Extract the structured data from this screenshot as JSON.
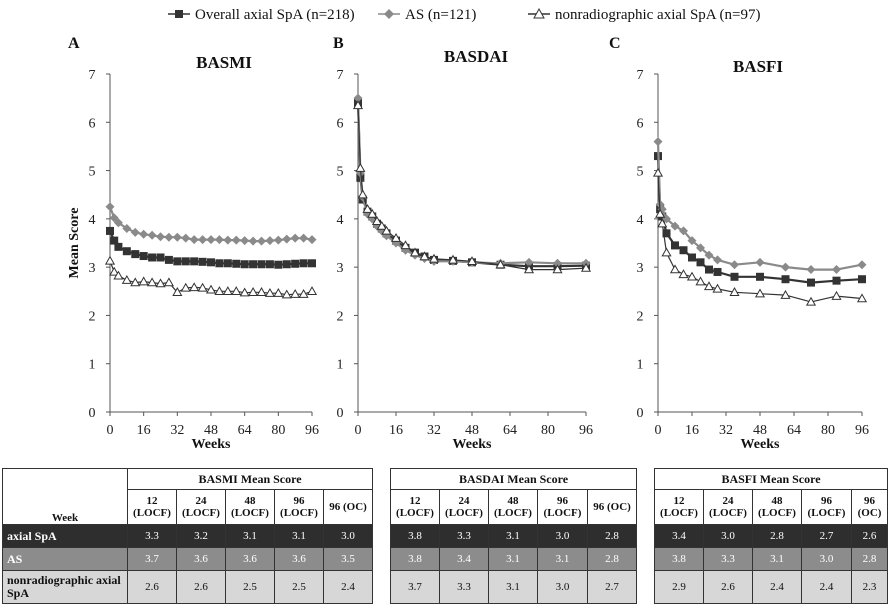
{
  "legend": [
    {
      "label": "Overall axial SpA (n=218)",
      "marker": "square",
      "color": "#333333"
    },
    {
      "label": "AS (n=121)",
      "marker": "diamond",
      "color": "#8a8a8a"
    },
    {
      "label": "nonradiographic axial SpA (n=97)",
      "marker": "triangle",
      "color": "#333333"
    }
  ],
  "chart_data": [
    {
      "type": "line",
      "panel_letter": "A",
      "title": "BASMI",
      "xlabel": "Weeks",
      "ylabel": "Mean Score",
      "ylim": [
        0,
        7
      ],
      "yticks": [
        "0",
        "1",
        "2",
        "3",
        "4",
        "5",
        "6",
        "7"
      ],
      "xlim": [
        0,
        96
      ],
      "xticks": [
        "0",
        "16",
        "32",
        "48",
        "64",
        "80",
        "96"
      ],
      "series": [
        {
          "name": "Overall axial SpA (n=218)",
          "x": [
            0,
            2,
            4,
            8,
            12,
            16,
            20,
            24,
            28,
            32,
            36,
            40,
            44,
            48,
            52,
            56,
            60,
            64,
            68,
            72,
            76,
            80,
            84,
            88,
            92,
            96
          ],
          "values": [
            3.75,
            3.55,
            3.42,
            3.33,
            3.27,
            3.23,
            3.2,
            3.2,
            3.15,
            3.12,
            3.12,
            3.12,
            3.11,
            3.1,
            3.08,
            3.08,
            3.07,
            3.06,
            3.06,
            3.06,
            3.06,
            3.05,
            3.06,
            3.07,
            3.08,
            3.08
          ]
        },
        {
          "name": "AS (n=121)",
          "x": [
            0,
            2,
            4,
            8,
            12,
            16,
            20,
            24,
            28,
            32,
            36,
            40,
            44,
            48,
            52,
            56,
            60,
            64,
            68,
            72,
            76,
            80,
            84,
            88,
            92,
            96
          ],
          "values": [
            4.25,
            4.02,
            3.92,
            3.8,
            3.72,
            3.68,
            3.66,
            3.63,
            3.62,
            3.62,
            3.6,
            3.57,
            3.57,
            3.57,
            3.57,
            3.56,
            3.56,
            3.55,
            3.54,
            3.54,
            3.55,
            3.56,
            3.58,
            3.6,
            3.6,
            3.57
          ]
        },
        {
          "name": "nonradiographic axial SpA (n=97)",
          "x": [
            0,
            2,
            4,
            8,
            12,
            16,
            20,
            24,
            28,
            32,
            36,
            40,
            44,
            48,
            52,
            56,
            60,
            64,
            68,
            72,
            76,
            80,
            84,
            88,
            92,
            96
          ],
          "values": [
            3.13,
            2.9,
            2.82,
            2.73,
            2.68,
            2.7,
            2.68,
            2.66,
            2.68,
            2.48,
            2.57,
            2.58,
            2.57,
            2.53,
            2.5,
            2.5,
            2.5,
            2.47,
            2.48,
            2.48,
            2.46,
            2.46,
            2.43,
            2.44,
            2.44,
            2.5
          ]
        }
      ]
    },
    {
      "type": "line",
      "panel_letter": "B",
      "title": "BASDAI",
      "xlabel": "Weeks",
      "ylabel": "",
      "ylim": [
        0,
        7
      ],
      "yticks": [
        "0",
        "1",
        "2",
        "3",
        "4",
        "5",
        "6",
        "7"
      ],
      "xlim": [
        0,
        96
      ],
      "xticks": [
        "0",
        "16",
        "32",
        "48",
        "64",
        "80",
        "96"
      ],
      "series": [
        {
          "name": "Overall axial SpA (n=218)",
          "x": [
            0,
            1,
            2,
            4,
            6,
            8,
            10,
            12,
            16,
            20,
            24,
            28,
            32,
            40,
            48,
            60,
            72,
            84,
            96
          ],
          "values": [
            6.4,
            4.85,
            4.4,
            4.15,
            4.05,
            3.9,
            3.8,
            3.7,
            3.55,
            3.4,
            3.3,
            3.22,
            3.15,
            3.13,
            3.1,
            3.05,
            3.02,
            3.02,
            3.03
          ]
        },
        {
          "name": "AS (n=121)",
          "x": [
            0,
            1,
            2,
            4,
            6,
            8,
            10,
            12,
            16,
            20,
            24,
            28,
            32,
            40,
            48,
            60,
            72,
            84,
            96
          ],
          "values": [
            6.5,
            4.95,
            4.45,
            4.1,
            4.0,
            3.85,
            3.75,
            3.65,
            3.5,
            3.35,
            3.25,
            3.18,
            3.12,
            3.12,
            3.1,
            3.08,
            3.1,
            3.08,
            3.08
          ]
        },
        {
          "name": "nonradiographic axial SpA (n=97)",
          "x": [
            0,
            1,
            2,
            4,
            6,
            8,
            10,
            12,
            16,
            20,
            24,
            28,
            32,
            40,
            48,
            60,
            72,
            84,
            96
          ],
          "values": [
            6.35,
            5.05,
            4.5,
            4.2,
            4.1,
            3.95,
            3.85,
            3.75,
            3.6,
            3.45,
            3.3,
            3.22,
            3.17,
            3.15,
            3.12,
            3.05,
            2.95,
            2.95,
            2.98
          ]
        }
      ]
    },
    {
      "type": "line",
      "panel_letter": "C",
      "title": "BASFI",
      "xlabel": "Weeks",
      "ylabel": "",
      "ylim": [
        0,
        7
      ],
      "yticks": [
        "0",
        "1",
        "2",
        "3",
        "4",
        "5",
        "6",
        "7"
      ],
      "xlim": [
        0,
        96
      ],
      "xticks": [
        "0",
        "16",
        "32",
        "48",
        "64",
        "80",
        "96"
      ],
      "series": [
        {
          "name": "Overall axial SpA (n=218)",
          "x": [
            0,
            1,
            2,
            4,
            8,
            12,
            16,
            20,
            24,
            28,
            36,
            48,
            60,
            72,
            84,
            96
          ],
          "values": [
            5.3,
            4.2,
            4.05,
            3.7,
            3.45,
            3.35,
            3.2,
            3.1,
            2.95,
            2.9,
            2.8,
            2.8,
            2.75,
            2.68,
            2.72,
            2.75
          ]
        },
        {
          "name": "AS (n=121)",
          "x": [
            0,
            1,
            2,
            4,
            8,
            12,
            16,
            20,
            24,
            28,
            36,
            48,
            60,
            72,
            84,
            96
          ],
          "values": [
            5.6,
            4.3,
            4.2,
            4.0,
            3.85,
            3.75,
            3.55,
            3.4,
            3.25,
            3.15,
            3.05,
            3.1,
            3.0,
            2.95,
            2.95,
            3.05
          ]
        },
        {
          "name": "nonradiographic axial SpA (n=97)",
          "x": [
            0,
            1,
            2,
            4,
            8,
            12,
            16,
            20,
            24,
            28,
            36,
            48,
            60,
            72,
            84,
            96
          ],
          "values": [
            4.95,
            4.1,
            3.9,
            3.3,
            2.95,
            2.85,
            2.8,
            2.7,
            2.6,
            2.55,
            2.48,
            2.45,
            2.42,
            2.28,
            2.4,
            2.35
          ]
        }
      ]
    }
  ],
  "tables": {
    "week_label": "Week",
    "col_headers": [
      "12 (LOCF)",
      "24 (LOCF)",
      "48 (LOCF)",
      "96 (LOCF)",
      "96 (OC)"
    ],
    "row_labels": [
      "axial SpA",
      "AS",
      "nonradiographic axial SpA"
    ],
    "panels": [
      {
        "title": "BASMI Mean Score",
        "rows": [
          [
            "3.3",
            "3.2",
            "3.1",
            "3.1",
            "3.0"
          ],
          [
            "3.7",
            "3.6",
            "3.6",
            "3.6",
            "3.5"
          ],
          [
            "2.6",
            "2.6",
            "2.5",
            "2.5",
            "2.4"
          ]
        ]
      },
      {
        "title": "BASDAI Mean Score",
        "rows": [
          [
            "3.8",
            "3.3",
            "3.1",
            "3.0",
            "2.8"
          ],
          [
            "3.8",
            "3.4",
            "3.1",
            "3.1",
            "2.8"
          ],
          [
            "3.7",
            "3.3",
            "3.1",
            "3.0",
            "2.7"
          ]
        ]
      },
      {
        "title": "BASFI Mean Score",
        "rows": [
          [
            "3.4",
            "3.0",
            "2.8",
            "2.7",
            "2.6"
          ],
          [
            "3.8",
            "3.3",
            "3.1",
            "3.0",
            "2.8"
          ],
          [
            "2.9",
            "2.6",
            "2.4",
            "2.4",
            "2.3"
          ]
        ]
      }
    ]
  }
}
